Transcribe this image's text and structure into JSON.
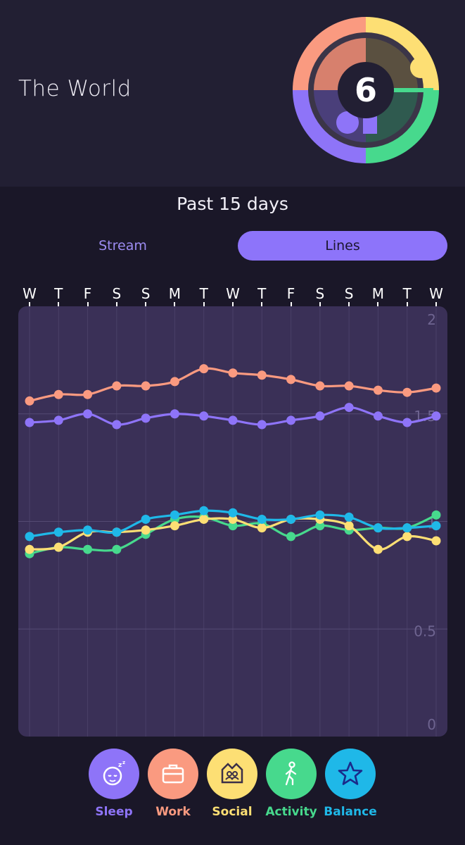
{
  "header": {
    "title": "The World",
    "score": "6"
  },
  "period_label": "Past 15 days",
  "tabs": [
    {
      "label": "Stream",
      "active": false
    },
    {
      "label": "Lines",
      "active": true
    }
  ],
  "colors": {
    "sleep": "#8e74f8",
    "work": "#fa9a80",
    "social": "#fddf74",
    "activity": "#47d98d",
    "balance": "#1fb8e8",
    "background": "#1a1728",
    "plot_bg": "#3a3057"
  },
  "chart_data": {
    "type": "line",
    "categories": [
      "W",
      "T",
      "F",
      "S",
      "S",
      "M",
      "T",
      "W",
      "T",
      "F",
      "S",
      "S",
      "M",
      "T",
      "W"
    ],
    "ylim": [
      0,
      2
    ],
    "yticks": [
      {
        "value": 2,
        "label": "2"
      },
      {
        "value": 1.5,
        "label": "1.5"
      },
      {
        "value": 1,
        "label": "1"
      },
      {
        "value": 0.5,
        "label": "0.5"
      },
      {
        "value": 0,
        "label": "0"
      }
    ],
    "grid": true,
    "series": [
      {
        "name": "Work",
        "color": "#fa9a80",
        "values": [
          1.56,
          1.59,
          1.59,
          1.63,
          1.63,
          1.65,
          1.71,
          1.69,
          1.68,
          1.66,
          1.63,
          1.63,
          1.61,
          1.6,
          1.62
        ]
      },
      {
        "name": "Sleep",
        "color": "#8e74f8",
        "values": [
          1.46,
          1.47,
          1.5,
          1.45,
          1.48,
          1.5,
          1.49,
          1.47,
          1.45,
          1.47,
          1.49,
          1.53,
          1.49,
          1.46,
          1.49
        ]
      },
      {
        "name": "Activity",
        "color": "#47d98d",
        "values": [
          0.85,
          0.88,
          0.87,
          0.87,
          0.94,
          1.01,
          1.02,
          0.98,
          0.99,
          0.93,
          0.98,
          0.96,
          0.97,
          0.97,
          1.03
        ]
      },
      {
        "name": "Social",
        "color": "#fddf74",
        "values": [
          0.87,
          0.88,
          0.95,
          0.95,
          0.96,
          0.98,
          1.01,
          1.01,
          0.97,
          1.01,
          1.01,
          0.98,
          0.87,
          0.93,
          0.91
        ]
      },
      {
        "name": "Balance",
        "color": "#1fb8e8",
        "values": [
          0.93,
          0.95,
          0.96,
          0.95,
          1.01,
          1.03,
          1.05,
          1.04,
          1.01,
          1.01,
          1.03,
          1.02,
          0.97,
          0.97,
          0.98
        ]
      }
    ]
  },
  "legend": [
    {
      "label": "Sleep",
      "icon": "sleeping-face-icon",
      "color": "#8e74f8",
      "icon_color": "#ffffff"
    },
    {
      "label": "Work",
      "icon": "briefcase-icon",
      "color": "#fa9a80",
      "icon_color": "#ffffff"
    },
    {
      "label": "Social",
      "icon": "people-icon",
      "color": "#fddf74",
      "icon_color": "#3b2f47"
    },
    {
      "label": "Activity",
      "icon": "walking-icon",
      "color": "#47d98d",
      "icon_color": "#ffffff"
    },
    {
      "label": "Balance",
      "icon": "star-icon",
      "color": "#1fb8e8",
      "icon_color": "#1a2a8a"
    }
  ]
}
